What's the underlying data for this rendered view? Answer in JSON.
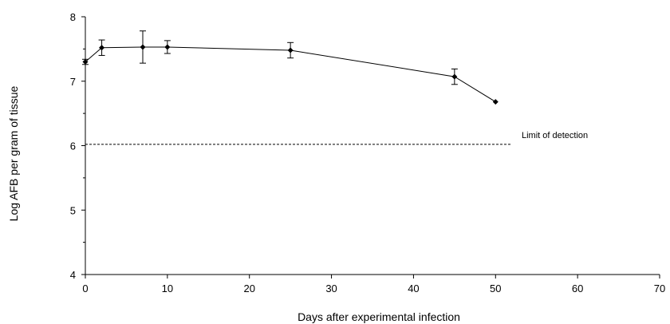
{
  "chart_data": {
    "type": "line",
    "title": "",
    "xlabel": "Days after experimental infection",
    "ylabel": "Log AFB per gram of tissue",
    "xlim": [
      0,
      70
    ],
    "ylim": [
      4,
      8
    ],
    "xticks": [
      0,
      10,
      20,
      30,
      40,
      50,
      60,
      70
    ],
    "yticks": [
      4,
      5,
      6,
      7,
      8
    ],
    "grid": false,
    "legend": "none",
    "series": [
      {
        "x": [
          0,
          2,
          7,
          10,
          25,
          45,
          50
        ],
        "y": [
          7.3,
          7.52,
          7.53,
          7.53,
          7.48,
          7.07,
          6.68
        ],
        "error": [
          0.04,
          0.12,
          0.25,
          0.1,
          0.12,
          0.12,
          0
        ],
        "color": "#000000"
      }
    ],
    "reference_line": {
      "y": 6.02,
      "x_range": [
        0,
        52
      ],
      "style": "dashed",
      "label": "Limit of detection"
    }
  }
}
